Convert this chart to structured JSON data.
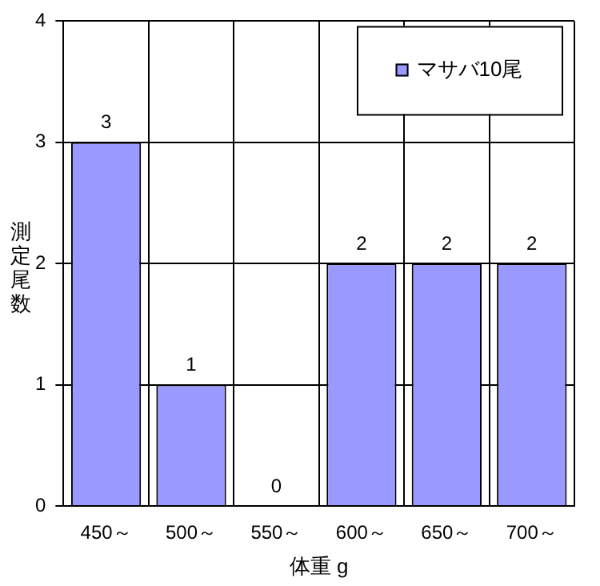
{
  "chart_data": {
    "type": "bar",
    "xlabel": "体重 g",
    "ylabel": "測定尾数",
    "categories": [
      "450～",
      "500～",
      "550～",
      "600～",
      "650～",
      "700～"
    ],
    "series": [
      {
        "name": "マサバ10尾",
        "color": "#9999ff",
        "values": [
          3,
          1,
          0,
          2,
          2,
          2
        ]
      }
    ],
    "ylim": [
      0,
      4
    ],
    "yticks": [
      0,
      1,
      2,
      3,
      4
    ],
    "grid": true,
    "legend": "top right",
    "data_labels": true
  }
}
